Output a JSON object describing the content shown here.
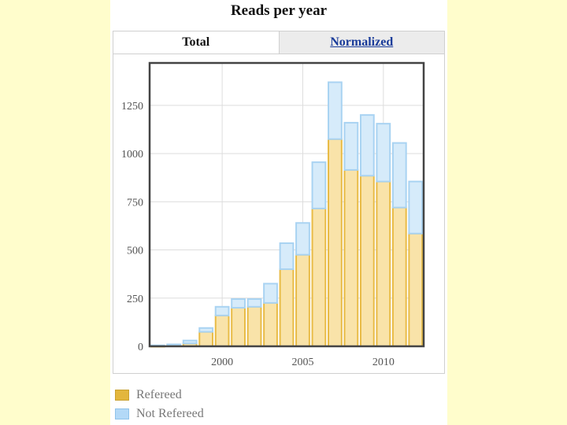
{
  "chart_data": {
    "type": "bar",
    "stacked": true,
    "title": "Reads per year",
    "tabs": [
      {
        "label": "Total",
        "active": true
      },
      {
        "label": "Normalized",
        "active": false
      }
    ],
    "x": [
      1996,
      1997,
      1998,
      1999,
      2000,
      2001,
      2002,
      2003,
      2004,
      2005,
      2006,
      2007,
      2008,
      2009,
      2010,
      2011,
      2012
    ],
    "xticks": [
      "2000",
      "2005",
      "2010"
    ],
    "yticks": [
      "0",
      "250",
      "500",
      "750",
      "1000",
      "1250"
    ],
    "ylim": [
      0,
      1470
    ],
    "xlim": [
      1995.5,
      2012.5
    ],
    "grid": true,
    "legend_position": "bottom-left",
    "series": [
      {
        "name": "Refereed",
        "color": "#f9e3a9",
        "edge": "#e8bb46",
        "values": [
          0,
          5,
          15,
          75,
          160,
          200,
          205,
          225,
          400,
          475,
          715,
          1075,
          915,
          885,
          855,
          720,
          585
        ]
      },
      {
        "name": "Not Refereed",
        "color": "#d6ebfa",
        "edge": "#a9d3f2",
        "values": [
          5,
          5,
          15,
          20,
          45,
          45,
          40,
          100,
          135,
          165,
          240,
          295,
          245,
          315,
          300,
          335,
          270
        ]
      }
    ],
    "legend": [
      {
        "label": "Refereed",
        "swatch": "#e3b63c"
      },
      {
        "label": "Not Refereed",
        "swatch": "#b3d9f7"
      }
    ]
  }
}
